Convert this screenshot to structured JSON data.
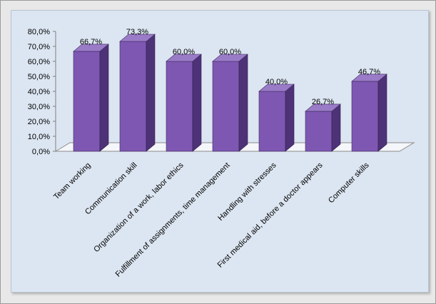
{
  "chart_data": {
    "type": "bar",
    "categories": [
      "Team working",
      "Communication skill",
      "Organization of a work, labor ethics",
      "Fulfillment of assignments,  time management",
      "Handling with stresses",
      "First medical aid, before a doctor appears",
      "Computer skills"
    ],
    "values": [
      66.7,
      73.3,
      60.0,
      60.0,
      40.0,
      26.7,
      46.7
    ],
    "data_labels": [
      "66,7%",
      "73,3%",
      "60,0%",
      "60,0%",
      "40,0%",
      "26,7%",
      "46,7%"
    ],
    "y_ticks": [
      "0,0%",
      "10,0%",
      "20,0%",
      "30,0%",
      "40,0%",
      "50,0%",
      "60,0%",
      "70,0%",
      "80,0%"
    ],
    "ylim": [
      0,
      80
    ],
    "title": "",
    "xlabel": "",
    "ylabel": "",
    "grid": false,
    "legend": "none",
    "colors": {
      "bar_front": "#7e57b3",
      "bar_side": "#4e3278",
      "bar_top": "#9a7bc8",
      "panel_bg": "#dce6f2",
      "floor": "#f4f6fa"
    }
  }
}
